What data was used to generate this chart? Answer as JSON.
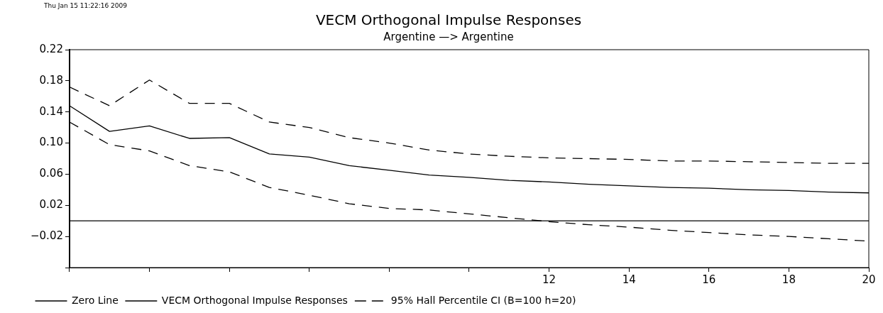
{
  "chart_data": {
    "type": "line",
    "title": "VECM Orthogonal Impulse Responses",
    "subtitle": "Argentine —> Argentine",
    "annotations": [
      "Thu Jan 15 11:22:16 2009"
    ],
    "x": [
      0,
      1,
      2,
      3,
      4,
      5,
      6,
      7,
      8,
      9,
      10,
      11,
      12,
      13,
      14,
      15,
      16,
      17,
      18,
      19,
      20
    ],
    "xlim": [
      0,
      20
    ],
    "xticks": [
      {
        "value": 0,
        "label": null
      },
      {
        "value": 2,
        "label": null
      },
      {
        "value": 4,
        "label": null
      },
      {
        "value": 6,
        "label": null
      },
      {
        "value": 8,
        "label": null
      },
      {
        "value": 10,
        "label": null
      },
      12,
      14,
      16,
      18,
      20
    ],
    "ylim": [
      -0.06,
      0.22
    ],
    "yticks": [
      {
        "value": -0.06,
        "label": null
      },
      {
        "value": -0.02,
        "label": "−0.02"
      },
      0.02,
      {
        "value": 0.06,
        "label": "0.06"
      },
      {
        "value": 0.1,
        "label": "0.10"
      },
      0.14,
      0.18,
      0.22
    ],
    "grid": false,
    "legend": "bottom left",
    "marker": "none",
    "series": [
      {
        "name": "Zero Line",
        "color": "#000000",
        "line_style": "solid",
        "values": [
          0,
          0,
          0,
          0,
          0,
          0,
          0,
          0,
          0,
          0,
          0,
          0,
          0,
          0,
          0,
          0,
          0,
          0,
          0,
          0,
          0
        ]
      },
      {
        "name": "VECM Orthogonal Impulse Responses",
        "color": "#000000",
        "line_style": "solid",
        "values": [
          0.148,
          0.115,
          0.122,
          0.106,
          0.107,
          0.086,
          0.082,
          0.071,
          0.065,
          0.059,
          0.056,
          0.052,
          0.05,
          0.047,
          0.045,
          0.043,
          0.042,
          0.04,
          0.039,
          0.037,
          0.036
        ]
      },
      {
        "name": "95% Hall Percentile CI (B=100 h=20)",
        "color": "#000000",
        "line_style": "dashed",
        "values": [
          0.172,
          0.148,
          0.181,
          0.151,
          0.151,
          0.127,
          0.12,
          0.107,
          0.1,
          0.091,
          0.086,
          0.083,
          0.081,
          0.08,
          0.079,
          0.077,
          0.077,
          0.076,
          0.075,
          0.074,
          0.074
        ]
      },
      {
        "color": "#000000",
        "line_style": "dashed",
        "values": [
          0.127,
          0.098,
          0.09,
          0.071,
          0.063,
          0.043,
          0.033,
          0.022,
          0.016,
          0.014,
          0.009,
          0.004,
          -0.001,
          -0.005,
          -0.008,
          -0.012,
          -0.015,
          -0.018,
          -0.02,
          -0.023,
          -0.026
        ]
      }
    ]
  }
}
